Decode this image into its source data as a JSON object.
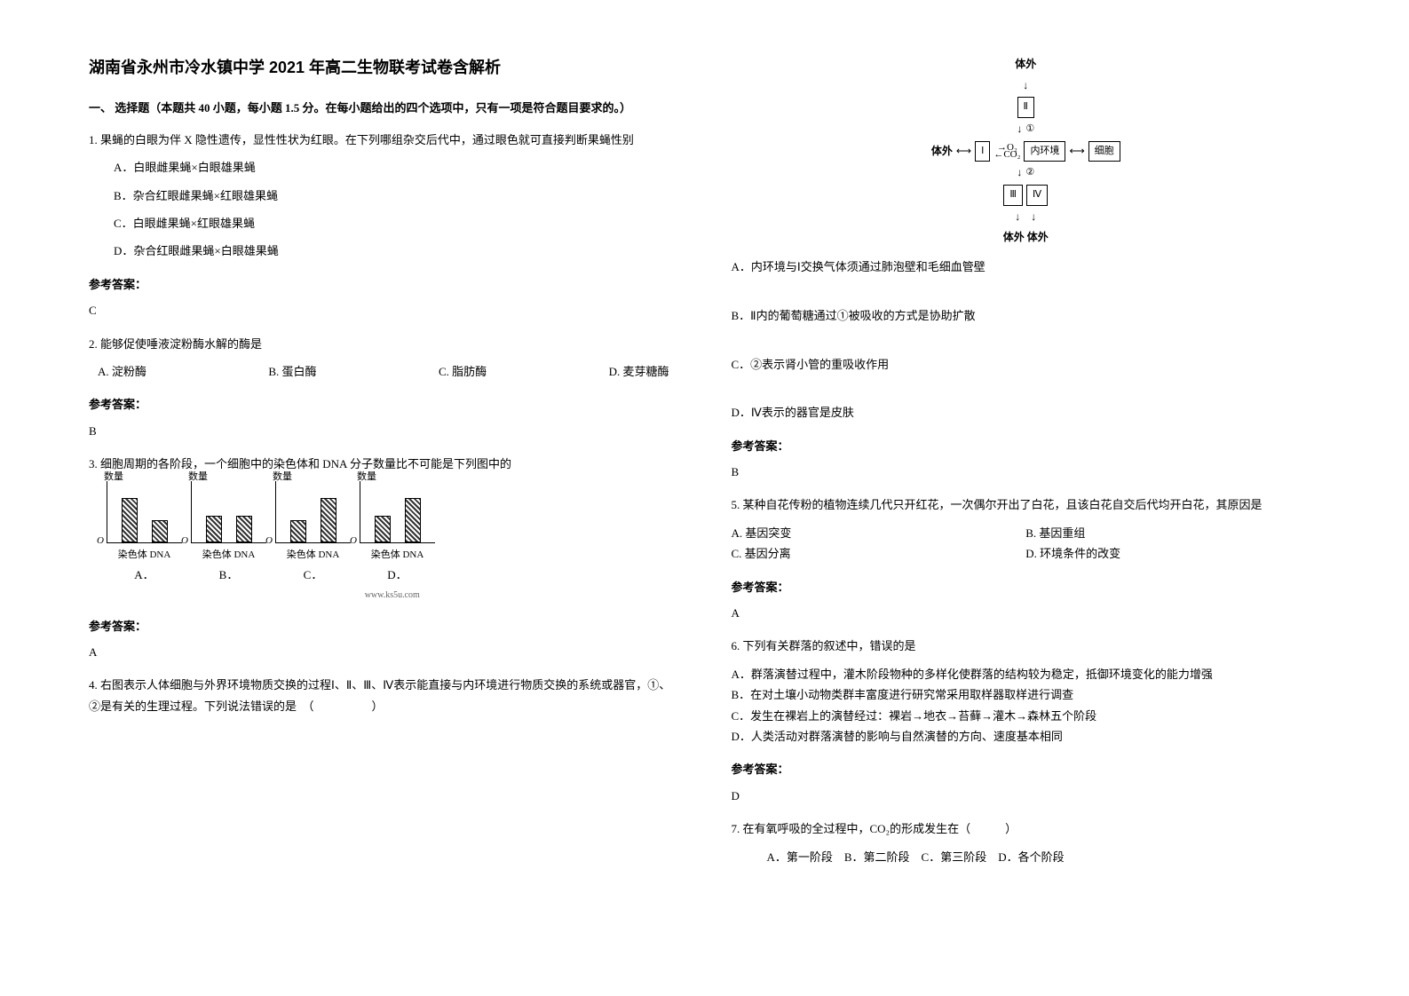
{
  "title": "湖南省永州市冷水镇中学 2021 年高二生物联考试卷含解析",
  "section1_header": "一、 选择题（本题共 40 小题，每小题 1.5 分。在每小题给出的四个选项中，只有一项是符合题目要求的。）",
  "q1": {
    "text": "1. 果蝇的白眼为伴 X 隐性遗传，显性性状为红眼。在下列哪组杂交后代中，通过眼色就可直接判断果蝇性别",
    "optA": "A．白眼雌果蝇×白眼雄果蝇",
    "optB": "B．杂合红眼雌果蝇×红眼雄果蝇",
    "optC": "C．白眼雌果蝇×红眼雄果蝇",
    "optD": "D．杂合红眼雌果蝇×白眼雄果蝇",
    "answer_label": "参考答案：",
    "answer": "C"
  },
  "q2": {
    "text": "2. 能够促使唾液淀粉酶水解的酶是",
    "optA": "A. 淀粉酶",
    "optB": "B. 蛋白酶",
    "optC": "C. 脂肪酶",
    "optD": "D. 麦芽糖酶",
    "answer_label": "参考答案：",
    "answer": "B"
  },
  "q3": {
    "text": "3. 细胞周期的各阶段，一个细胞中的染色体和 DNA 分子数量比不可能是下列图中的",
    "ylabel": "数量",
    "xlabel_left": "染色体",
    "xlabel_right": "DNA",
    "letters": [
      "A．",
      "B．",
      "C．",
      "D．"
    ],
    "url": "www.ks5u.com",
    "answer_label": "参考答案：",
    "answer": "A",
    "charts": [
      {
        "bar1_h": 50,
        "bar2_h": 25
      },
      {
        "bar1_h": 30,
        "bar2_h": 30
      },
      {
        "bar1_h": 25,
        "bar2_h": 50
      },
      {
        "bar1_h": 30,
        "bar2_h": 50
      }
    ]
  },
  "q4": {
    "text": "4. 右图表示人体细胞与外界环境物质交换的过程Ⅰ、Ⅱ、Ⅲ、Ⅳ表示能直接与内环境进行物质交换的系统或器官，①、②是有关的生理过程。下列说法错误的是　（　　　　　）",
    "diagram": {
      "top": "体外",
      "box2": "Ⅱ",
      "circ1": "①",
      "left_out": "体外",
      "box1": "Ⅰ",
      "o2": "O₂",
      "co2": "CO₂",
      "inner": "内环境",
      "cell": "细胞",
      "circ2": "②",
      "box3": "Ⅲ",
      "box4": "Ⅳ",
      "bottom": "体外 体外"
    },
    "optA": "A．内环境与Ⅰ交换气体须通过肺泡壁和毛细血管壁",
    "optB": "B．Ⅱ内的葡萄糖通过①被吸收的方式是协助扩散",
    "optC": "C．②表示肾小管的重吸收作用",
    "optD": "D．Ⅳ表示的器官是皮肤",
    "answer_label": "参考答案：",
    "answer": "B"
  },
  "q5": {
    "text": "5. 某种自花传粉的植物连续几代只开红花，一次偶尔开出了白花，且该白花自交后代均开白花，其原因是",
    "optA": "A. 基因突变",
    "optB": "B. 基因重组",
    "optC": "C. 基因分离",
    "optD": "D.  环境条件的改变",
    "answer_label": "参考答案：",
    "answer": "A"
  },
  "q6": {
    "text": "6. 下列有关群落的叙述中，错误的是",
    "optA": "A．群落演替过程中，灌木阶段物种的多样化使群落的结构较为稳定，抵御环境变化的能力增强",
    "optB": "B．在对土壤小动物类群丰富度进行研究常采用取样器取样进行调查",
    "optC": "C．发生在裸岩上的演替经过：裸岩→地衣→苔藓→灌木→森林五个阶段",
    "optD": "D．人类活动对群落演替的影响与自然演替的方向、速度基本相同",
    "answer_label": "参考答案：",
    "answer": "D"
  },
  "q7": {
    "text": "7. 在有氧呼吸的全过程中，CO₂的形成发生在（　　　）",
    "opts": "A．第一阶段　B．第二阶段　C．第三阶段　D．各个阶段"
  }
}
